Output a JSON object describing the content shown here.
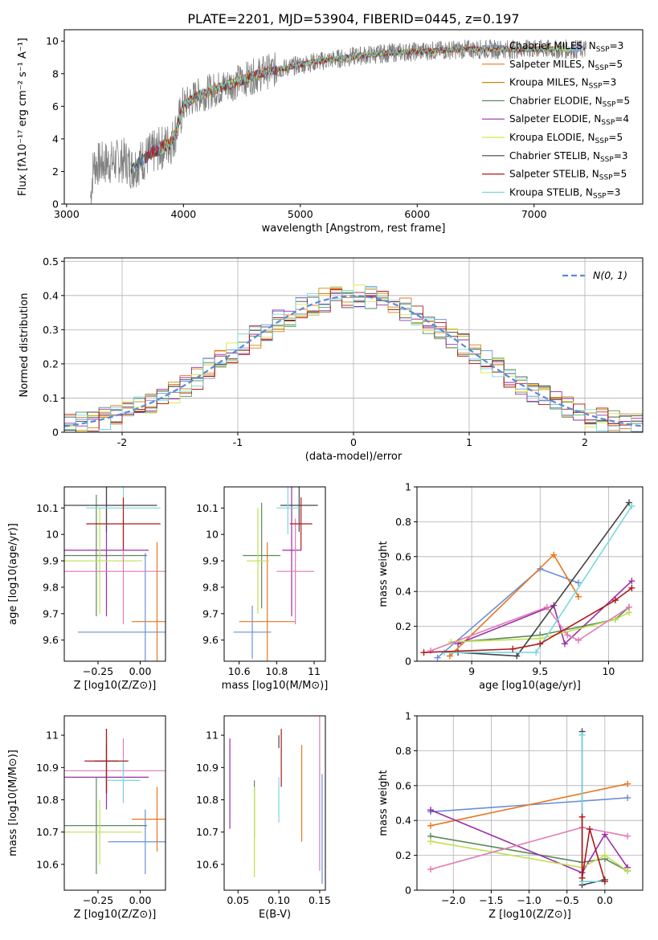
{
  "figure": {
    "title": "PLATE=2201, MJD=53904, FIBERID=0445, z=0.197"
  },
  "palette": {
    "spectrum": "#808080",
    "Chabrier MILES": "#6a8fd8",
    "Salpeter MILES": "#e8761e",
    "Kroupa MILES": "#c88a12",
    "Chabrier ELODIE": "#5a8a5a",
    "Salpeter ELODIE": "#9a2ea8",
    "Kroupa ELODIE": "#d8e640",
    "Chabrier STELIB": "#444444",
    "Salpeter STELIB": "#b01818",
    "Kroupa STELIB": "#78d8e0",
    "pink": "#e07ab4",
    "lime": "#c0e050",
    "gaussian": "#5a8ad8"
  },
  "legend_entries": [
    {
      "text": "Chabrier MILES, N",
      "sub": "SSP",
      "tail": "=3",
      "color": "#6a8fd8"
    },
    {
      "text": "Salpeter MILES, N",
      "sub": "SSP",
      "tail": "=5",
      "color": "#e8761e"
    },
    {
      "text": "Kroupa MILES, N",
      "sub": "SSP",
      "tail": "=3",
      "color": "#c88a12"
    },
    {
      "text": "Chabrier ELODIE, N",
      "sub": "SSP",
      "tail": "=5",
      "color": "#5a8a5a"
    },
    {
      "text": "Salpeter ELODIE, N",
      "sub": "SSP",
      "tail": "=4",
      "color": "#9a2ea8"
    },
    {
      "text": "Kroupa ELODIE, N",
      "sub": "SSP",
      "tail": "=5",
      "color": "#d8e640"
    },
    {
      "text": "Chabrier STELIB, N",
      "sub": "SSP",
      "tail": "=3",
      "color": "#444444"
    },
    {
      "text": "Salpeter STELIB, N",
      "sub": "SSP",
      "tail": "=5",
      "color": "#b01818"
    },
    {
      "text": "Kroupa STELIB, N",
      "sub": "SSP",
      "tail": "=3",
      "color": "#78d8e0"
    }
  ],
  "chart_data": [
    {
      "id": "spectrum",
      "type": "line",
      "xlabel": "wavelength [Angstrom, rest frame]",
      "ylabel": "Flux [fλ10⁻¹⁷ erg cm⁻² s⁻¹ A⁻¹]",
      "xlim": [
        2980,
        7930
      ],
      "ylim": [
        0,
        10.7
      ],
      "xticks": [
        3000,
        4000,
        5000,
        6000,
        7000
      ],
      "yticks": [
        0,
        2,
        4,
        6,
        8,
        10
      ],
      "continuum_anchors": {
        "x": [
          3200,
          3230,
          3500,
          3560,
          3700,
          3900,
          3950,
          4000,
          4100,
          4300,
          4500,
          4700,
          4900,
          5100,
          5300,
          5500,
          5800,
          6100,
          6400,
          6700,
          7000,
          7300,
          7450
        ],
        "y": [
          0,
          2.4,
          2.7,
          2.2,
          3.0,
          3.8,
          4.8,
          6.0,
          6.6,
          7.1,
          7.6,
          8.1,
          8.4,
          8.7,
          8.9,
          9.1,
          9.3,
          9.4,
          9.5,
          9.5,
          9.5,
          9.5,
          9.5
        ]
      },
      "model_ranges": {
        "min": 3550,
        "max": 7400
      }
    },
    {
      "id": "residuals",
      "type": "histogram",
      "xlabel": "(data-model)/error",
      "ylabel": "Normed distribution",
      "xlim": [
        -2.5,
        2.5
      ],
      "ylim": [
        0,
        0.51
      ],
      "xticks": [
        -2,
        -1,
        0,
        1,
        2
      ],
      "yticks": [
        0.0,
        0.1,
        0.2,
        0.3,
        0.4,
        0.5
      ],
      "bin_width": 0.1,
      "legend_label": "N(0, 1)"
    },
    {
      "id": "age-vs-Z",
      "type": "errorbar",
      "xlabel": "Z [log10(Z/Z⊙)]",
      "ylabel": "age  [log10(age/yr)]",
      "xlim": [
        -0.45,
        0.15
      ],
      "ylim": [
        9.52,
        10.18
      ],
      "xticks": [
        -0.25,
        0.0
      ],
      "xticklabels": [
        "−0.25",
        "0.00"
      ],
      "yticks": [
        9.6,
        9.7,
        9.8,
        9.9,
        10.0,
        10.1
      ],
      "points": [
        {
          "c": "#6a8fd8",
          "x": 0.03,
          "y": 9.63,
          "xerr": 0.4,
          "yerr": 0.3
        },
        {
          "c": "#e8761e",
          "x": 0.1,
          "y": 9.67,
          "xerr": 0.15,
          "yerr": 0.3
        },
        {
          "c": "#5a8a5a",
          "x": -0.26,
          "y": 9.92,
          "xerr": 0.3,
          "yerr": 0.23
        },
        {
          "c": "#9a2ea8",
          "x": -0.2,
          "y": 9.94,
          "xerr": 0.25,
          "yerr": 0.25
        },
        {
          "c": "#c0e050",
          "x": -0.24,
          "y": 9.9,
          "xerr": 0.25,
          "yerr": 0.2
        },
        {
          "c": "#e07ab4",
          "x": -0.1,
          "y": 9.86,
          "xerr": 0.35,
          "yerr": 0.2
        },
        {
          "c": "#444444",
          "x": -0.2,
          "y": 10.11,
          "xerr": 0.3,
          "yerr": 0.1
        },
        {
          "c": "#78d8e0",
          "x": -0.1,
          "y": 10.1,
          "xerr": 0.22,
          "yerr": 0.1
        },
        {
          "c": "#b01818",
          "x": -0.1,
          "y": 10.04,
          "xerr": 0.22,
          "yerr": 0.1
        }
      ]
    },
    {
      "id": "age-vs-mass",
      "type": "errorbar",
      "xlabel": "mass [log10(M/M⊙)]",
      "ylabel": "",
      "xlim": [
        10.52,
        11.06
      ],
      "ylim": [
        9.52,
        10.18
      ],
      "xticks": [
        10.6,
        10.8,
        11.0
      ],
      "yticks": [
        9.6,
        9.7,
        9.8,
        9.9,
        10.0,
        10.1
      ],
      "points": [
        {
          "c": "#6a8fd8",
          "x": 10.67,
          "y": 9.63,
          "xerr": 0.1,
          "yerr": 0.1
        },
        {
          "c": "#e8761e",
          "x": 10.75,
          "y": 9.67,
          "xerr": 0.15,
          "yerr": 0.3
        },
        {
          "c": "#5a8a5a",
          "x": 10.72,
          "y": 9.92,
          "xerr": 0.1,
          "yerr": 0.2
        },
        {
          "c": "#9a2ea8",
          "x": 10.88,
          "y": 9.94,
          "xerr": 0.05,
          "yerr": 0.25
        },
        {
          "c": "#c0e050",
          "x": 10.7,
          "y": 9.9,
          "xerr": 0.06,
          "yerr": 0.2
        },
        {
          "c": "#e07ab4",
          "x": 10.9,
          "y": 9.86,
          "xerr": 0.1,
          "yerr": 0.2
        },
        {
          "c": "#444444",
          "x": 10.92,
          "y": 10.11,
          "xerr": 0.1,
          "yerr": 0.1
        },
        {
          "c": "#78d8e0",
          "x": 10.86,
          "y": 10.1,
          "xerr": 0.06,
          "yerr": 0.1
        },
        {
          "c": "#b01818",
          "x": 10.93,
          "y": 10.04,
          "xerr": 0.06,
          "yerr": 0.1
        }
      ]
    },
    {
      "id": "weight-vs-age",
      "type": "line",
      "xlabel": "age  [log10(age/yr)]",
      "ylabel": "mass weight",
      "xlim": [
        8.6,
        10.25
      ],
      "ylim": [
        0,
        1
      ],
      "xticks": [
        9.0,
        9.5,
        10.0
      ],
      "yticks": [
        0.0,
        0.2,
        0.4,
        0.6,
        0.8,
        1.0
      ],
      "series": [
        {
          "c": "#6a8fd8",
          "x": [
            8.75,
            9.5,
            9.78
          ],
          "y": [
            0.02,
            0.53,
            0.45
          ]
        },
        {
          "c": "#e8761e",
          "x": [
            8.84,
            9.6,
            9.78
          ],
          "y": [
            0.03,
            0.61,
            0.37
          ]
        },
        {
          "c": "#5a8a5a",
          "x": [
            8.9,
            9.5,
            10.05,
            10.15
          ],
          "y": [
            0.11,
            0.15,
            0.24,
            0.31
          ]
        },
        {
          "c": "#9a2ea8",
          "x": [
            8.9,
            9.6,
            9.68,
            10.17
          ],
          "y": [
            0.1,
            0.32,
            0.1,
            0.46
          ]
        },
        {
          "c": "#c0e050",
          "x": [
            8.85,
            9.5,
            10.05,
            10.15
          ],
          "y": [
            0.11,
            0.13,
            0.24,
            0.28
          ]
        },
        {
          "c": "#e07ab4",
          "x": [
            8.7,
            9.55,
            9.7,
            9.78,
            10.15
          ],
          "y": [
            0.06,
            0.31,
            0.15,
            0.12,
            0.31
          ]
        },
        {
          "c": "#444444",
          "x": [
            8.9,
            9.33,
            10.15
          ],
          "y": [
            0.05,
            0.03,
            0.91
          ]
        },
        {
          "c": "#78d8e0",
          "x": [
            8.8,
            9.47,
            10.17
          ],
          "y": [
            0.05,
            0.05,
            0.89
          ]
        },
        {
          "c": "#b01818",
          "x": [
            8.65,
            9.3,
            9.5,
            10.05,
            10.17
          ],
          "y": [
            0.05,
            0.07,
            0.1,
            0.35,
            0.42
          ]
        }
      ]
    },
    {
      "id": "mass-vs-Z",
      "type": "errorbar",
      "xlabel": "Z [log10(Z/Z⊙)]",
      "ylabel": "mass [log10(M/M⊙)]",
      "xlim": [
        -0.45,
        0.15
      ],
      "ylim": [
        10.52,
        11.06
      ],
      "xticks": [
        -0.25,
        0.0
      ],
      "xticklabels": [
        "−0.25",
        "0.00"
      ],
      "yticks": [
        10.6,
        10.7,
        10.8,
        10.9,
        11.0
      ],
      "points": [
        {
          "c": "#6a8fd8",
          "x": 0.03,
          "y": 10.67,
          "xerr": 0.22,
          "yerr": 0.1
        },
        {
          "c": "#e8761e",
          "x": 0.1,
          "y": 10.74,
          "xerr": 0.15,
          "yerr": 0.1
        },
        {
          "c": "#5a8a5a",
          "x": -0.26,
          "y": 10.72,
          "xerr": 0.3,
          "yerr": 0.15
        },
        {
          "c": "#9a2ea8",
          "x": -0.2,
          "y": 10.87,
          "xerr": 0.25,
          "yerr": 0.1
        },
        {
          "c": "#c0e050",
          "x": -0.24,
          "y": 10.7,
          "xerr": 0.25,
          "yerr": 0.1
        },
        {
          "c": "#e07ab4",
          "x": -0.1,
          "y": 10.89,
          "xerr": 0.35,
          "yerr": 0.1
        },
        {
          "c": "#444444",
          "x": -0.2,
          "y": 10.92,
          "xerr": 0.07,
          "yerr": 0.1
        },
        {
          "c": "#78d8e0",
          "x": -0.1,
          "y": 10.86,
          "xerr": 0.1,
          "yerr": 0.07
        },
        {
          "c": "#b01818",
          "x": -0.2,
          "y": 10.92,
          "xerr": 0.13,
          "yerr": 0.1
        }
      ]
    },
    {
      "id": "mass-vs-ebv",
      "type": "errorbar",
      "xlabel": "E(B-V)",
      "ylabel": "",
      "xlim": [
        0.033,
        0.157
      ],
      "ylim": [
        10.52,
        11.06
      ],
      "xticks": [
        0.05,
        0.1,
        0.15
      ],
      "xticklabels": [
        "0.05",
        "0.10",
        "0.15"
      ],
      "yticks": [
        10.6,
        10.7,
        10.8,
        10.9,
        11.0
      ],
      "points": [
        {
          "c": "#6a8fd8",
          "x": 0.153,
          "y": 10.71,
          "xerr": 0,
          "yerr": 0.17
        },
        {
          "c": "#e8761e",
          "x": 0.128,
          "y": 10.82,
          "xerr": 0,
          "yerr": 0.15
        },
        {
          "c": "#5a8a5a",
          "x": 0.07,
          "y": 10.77,
          "xerr": 0,
          "yerr": 0.09
        },
        {
          "c": "#9a2ea8",
          "x": 0.04,
          "y": 10.85,
          "xerr": 0,
          "yerr": 0.14
        },
        {
          "c": "#c0e050",
          "x": 0.07,
          "y": 10.7,
          "xerr": 0,
          "yerr": 0.14
        },
        {
          "c": "#e07ab4",
          "x": 0.15,
          "y": 10.86,
          "xerr": 0,
          "yerr": 0.28
        },
        {
          "c": "#444444",
          "x": 0.1,
          "y": 10.98,
          "xerr": 0,
          "yerr": 0.02
        },
        {
          "c": "#78d8e0",
          "x": 0.1,
          "y": 10.8,
          "xerr": 0,
          "yerr": 0.07
        },
        {
          "c": "#b01818",
          "x": 0.103,
          "y": 10.93,
          "xerr": 0,
          "yerr": 0.09
        }
      ]
    },
    {
      "id": "weight-vs-Z",
      "type": "line",
      "xlabel": "Z [log10(Z/Z⊙)]",
      "ylabel": "mass weight",
      "xlim": [
        -2.48,
        0.5
      ],
      "ylim": [
        0,
        1
      ],
      "xticks": [
        -2.0,
        -1.5,
        -1.0,
        -0.5,
        0.0
      ],
      "xticklabels": [
        "−2.0",
        "−1.5",
        "−1.0",
        "−0.5",
        "0.0"
      ],
      "yticks": [
        0.0,
        0.2,
        0.4,
        0.6,
        0.8,
        1.0
      ],
      "series": [
        {
          "c": "#6a8fd8",
          "x": [
            -2.3,
            0.3
          ],
          "y": [
            0.45,
            0.53
          ]
        },
        {
          "c": "#e8761e",
          "x": [
            -2.3,
            0.3
          ],
          "y": [
            0.37,
            0.61
          ]
        },
        {
          "c": "#5a8a5a",
          "x": [
            -2.3,
            -0.3,
            0.0,
            0.3
          ],
          "y": [
            0.31,
            0.16,
            0.18,
            0.11
          ]
        },
        {
          "c": "#9a2ea8",
          "x": [
            -2.3,
            -0.3,
            0.0,
            0.3
          ],
          "y": [
            0.46,
            0.1,
            0.32,
            0.13
          ]
        },
        {
          "c": "#c0e050",
          "x": [
            -2.3,
            -0.3,
            0.0,
            0.3
          ],
          "y": [
            0.28,
            0.13,
            0.2,
            0.11
          ]
        },
        {
          "c": "#e07ab4",
          "x": [
            -2.3,
            -0.3,
            0.3
          ],
          "y": [
            0.12,
            0.36,
            0.31
          ]
        },
        {
          "c": "#444444",
          "x": [
            -0.3,
            -0.3,
            0.0
          ],
          "y": [
            0.91,
            0.03,
            0.06
          ]
        },
        {
          "c": "#78d8e0",
          "x": [
            -0.3,
            -0.3,
            0.0
          ],
          "y": [
            0.89,
            0.05,
            0.05
          ]
        },
        {
          "c": "#b01818",
          "x": [
            -0.3,
            -0.3,
            -0.2,
            0.0
          ],
          "y": [
            0.42,
            0.07,
            0.35,
            0.05
          ]
        }
      ]
    }
  ]
}
